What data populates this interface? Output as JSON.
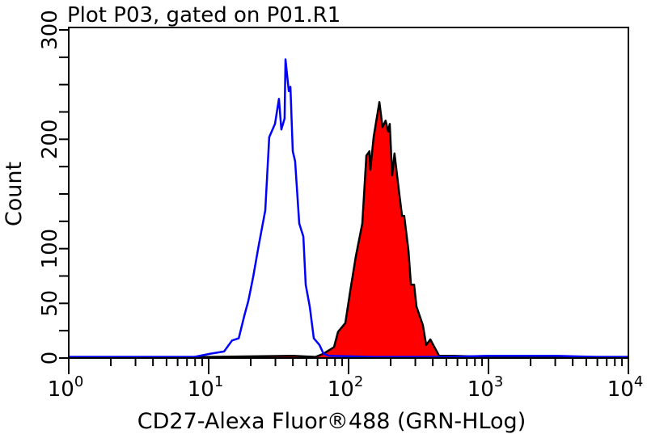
{
  "chart_data": {
    "type": "area",
    "title": "Plot P03, gated on P01.R1",
    "xlabel": "CD27-Alexa Fluor®488 (GRN-HLog)",
    "ylabel": "Count",
    "xscale": "log",
    "xlim": [
      1,
      10000
    ],
    "ylim": [
      0,
      300
    ],
    "x_tick_labels": [
      {
        "base": "10",
        "exp": "0",
        "value": 1
      },
      {
        "base": "10",
        "exp": "1",
        "value": 10
      },
      {
        "base": "10",
        "exp": "2",
        "value": 100
      },
      {
        "base": "10",
        "exp": "3",
        "value": 1000
      },
      {
        "base": "10",
        "exp": "4",
        "value": 10000
      }
    ],
    "y_tick_labels": [
      "0",
      "50",
      "100",
      "200",
      "300"
    ],
    "y_tick_values": [
      0,
      50,
      100,
      200,
      300
    ],
    "y_minor_step": 25,
    "grid": false,
    "series": [
      {
        "style": "line",
        "color": "#0000ff",
        "x": [
          1,
          5,
          7.9,
          10.3,
          12.9,
          14.7,
          16.4,
          18.0,
          19.2,
          20.8,
          22.8,
          25.4,
          27.1,
          29.8,
          31.8,
          33.1,
          34.9,
          35.4,
          37.4,
          38.4,
          39.9,
          41.5,
          44.4,
          47.5,
          49.4,
          52.8,
          56.4,
          61.9,
          66.2,
          72.6,
          150,
          500,
          1000,
          3000,
          6000,
          10000
        ],
        "y": [
          1,
          1,
          1,
          4,
          6,
          16,
          18,
          39,
          52,
          74,
          103,
          135,
          202,
          214,
          237,
          209,
          219,
          273,
          244,
          248,
          189,
          180,
          123,
          111,
          67,
          47,
          18,
          12,
          4,
          2,
          1,
          1,
          2,
          2,
          1,
          1
        ]
      },
      {
        "style": "filled",
        "color": "#ff0000",
        "outline": "#000000",
        "x": [
          1,
          10,
          40,
          58.0,
          66.2,
          78.7,
          84.1,
          94.8,
          102.7,
          112.8,
          125.4,
          134,
          141,
          143,
          151,
          166,
          175,
          184,
          192,
          197,
          205,
          213,
          228,
          241,
          250,
          268,
          279,
          294,
          306,
          340,
          359,
          384,
          444,
          557,
          1000,
          10000
        ],
        "y": [
          1,
          1,
          2,
          1,
          4,
          10,
          24,
          32,
          61,
          93,
          123,
          185,
          189,
          172,
          202,
          234,
          211,
          217,
          207,
          214,
          167,
          187,
          155,
          130,
          130,
          98,
          67,
          67,
          47,
          30,
          12,
          17,
          2,
          2,
          1,
          1
        ]
      }
    ]
  }
}
